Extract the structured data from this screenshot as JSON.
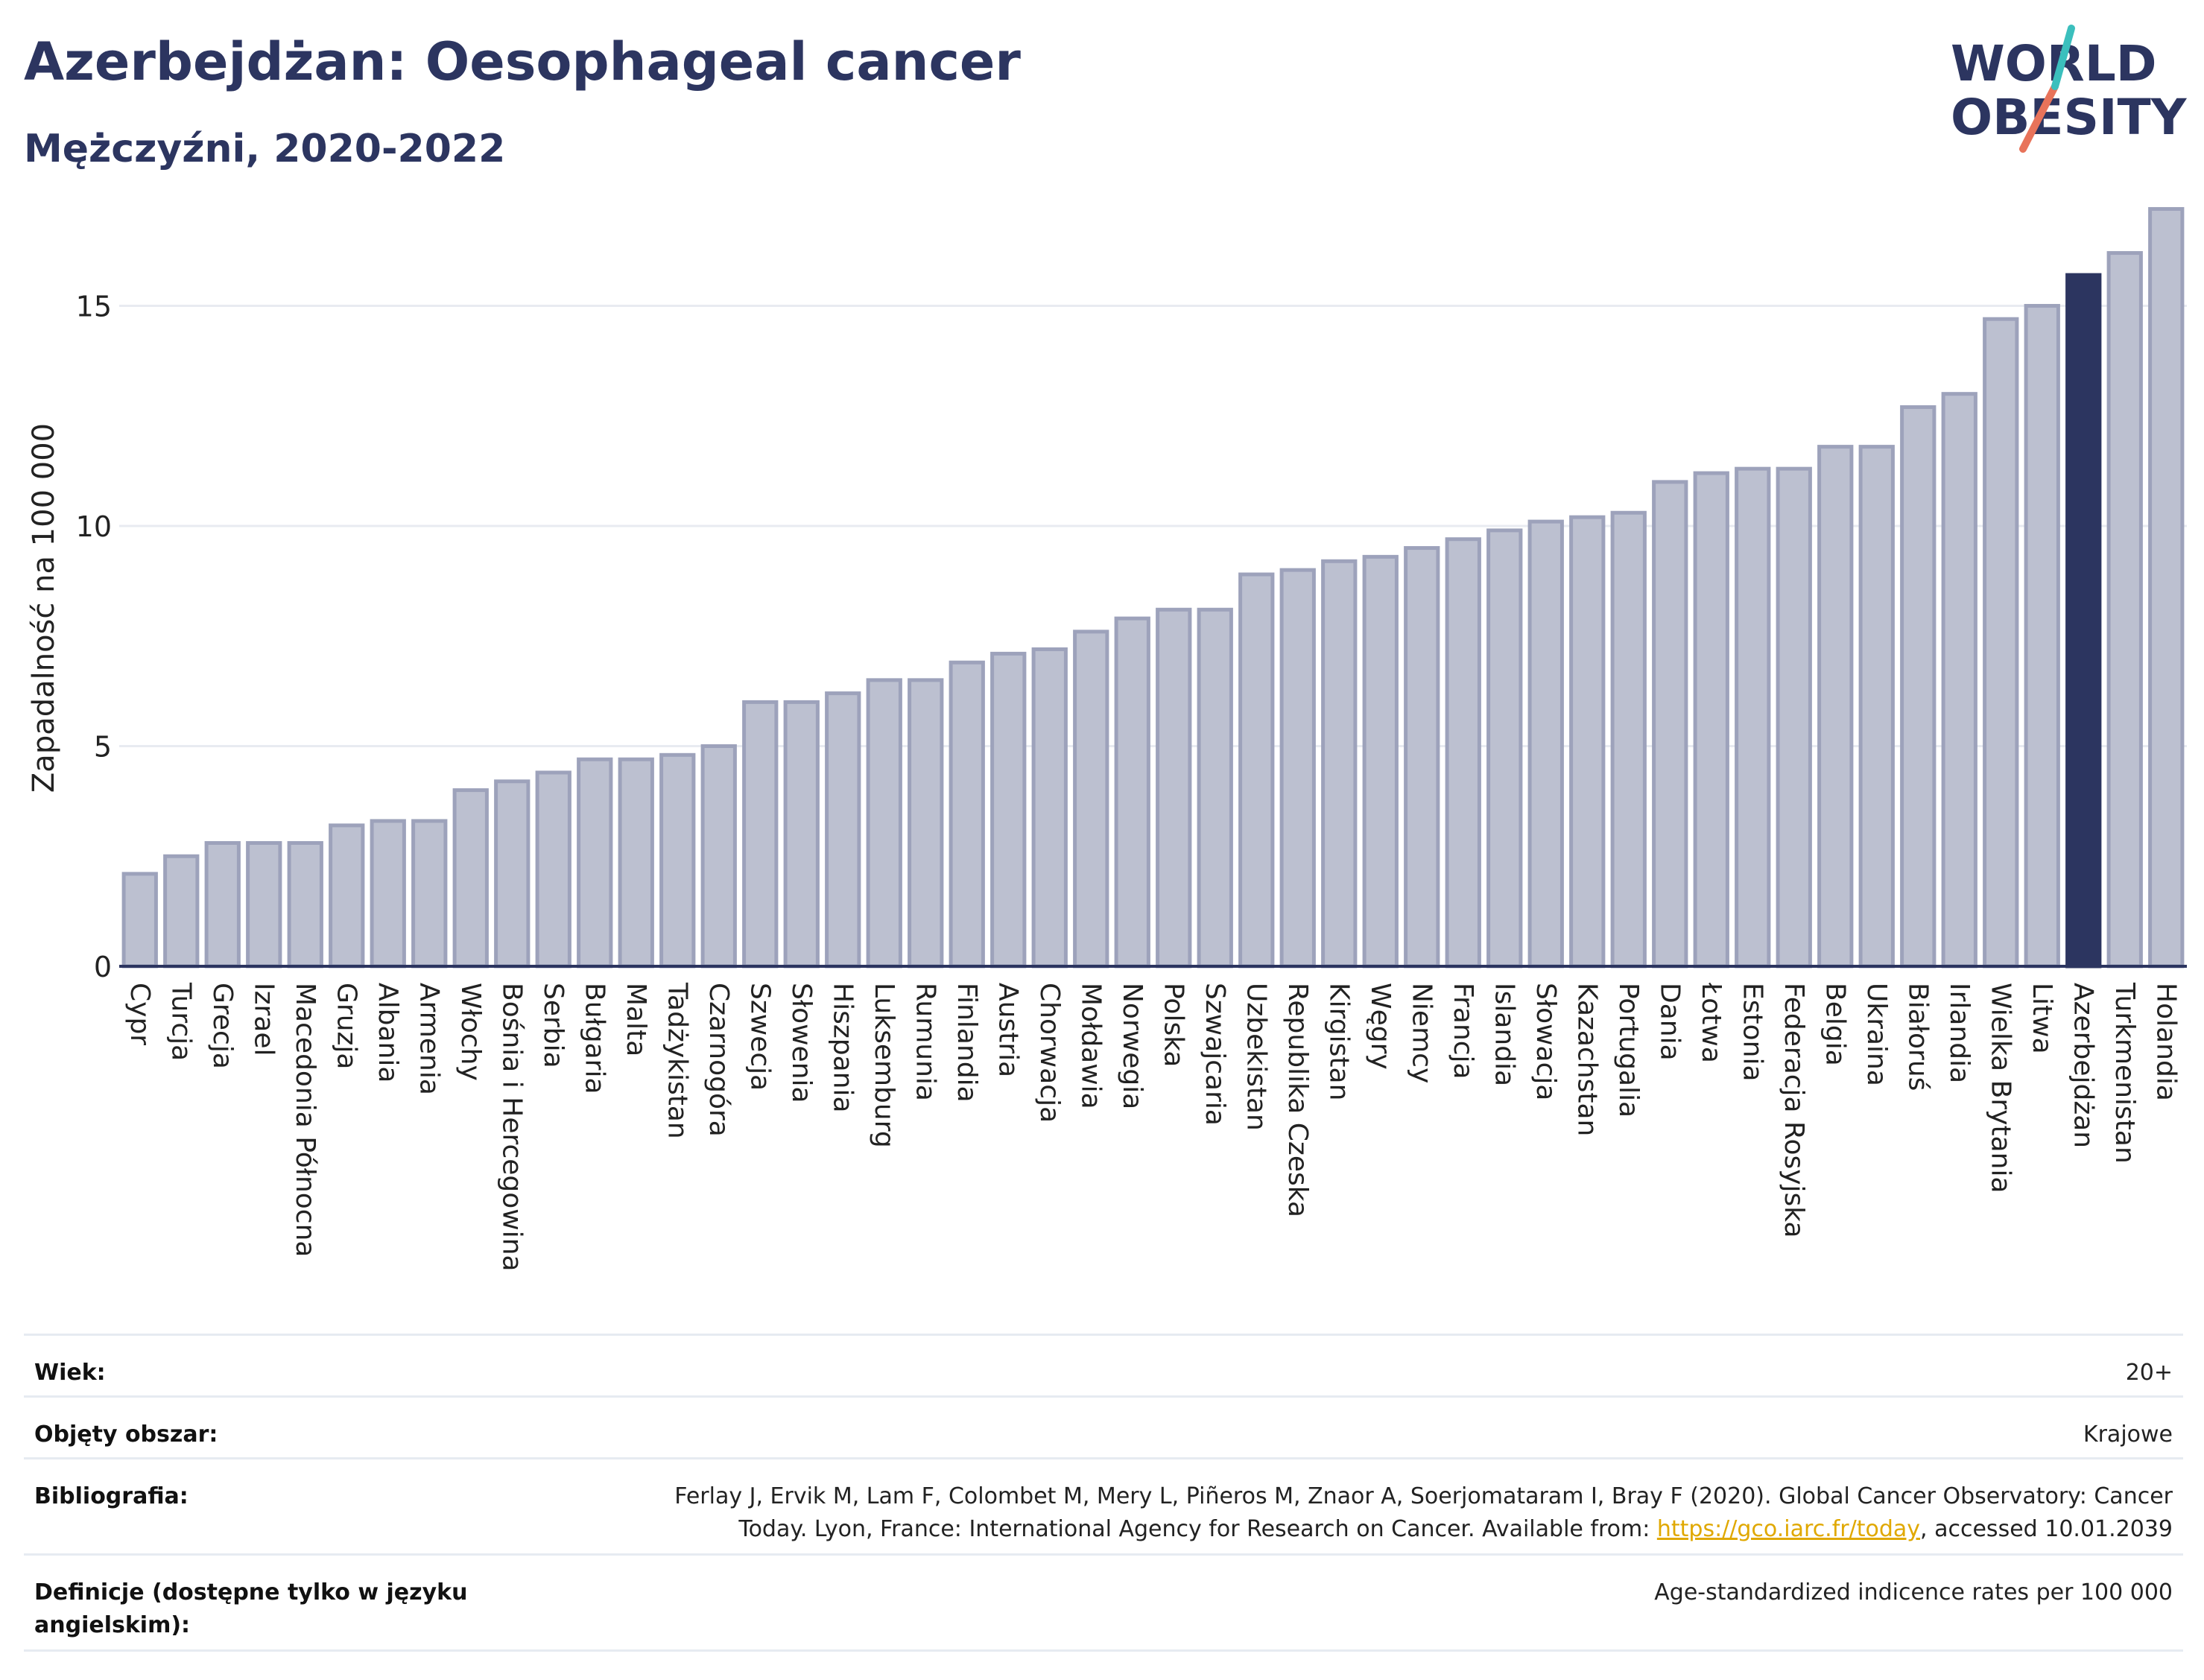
{
  "header": {
    "title": "Azerbejdżan: Oesophageal cancer",
    "subtitle": "Mężczyźni, 2020-2022"
  },
  "logo": {
    "line1": "WORLD",
    "line2": "OBESITY"
  },
  "colors": {
    "bar": "#bcc0d0",
    "bar_border": "#9da2bb",
    "highlight": "#2c3560",
    "title": "#2c3560",
    "link": "#e0a800",
    "logo_slash_teal": "#3bbfbd",
    "logo_slash_red": "#e8735a"
  },
  "chart_data": {
    "type": "bar",
    "ylabel": "Zapadalność na 100 000",
    "ylim": [
      0,
      17.8
    ],
    "yticks": [
      0,
      5,
      10,
      15
    ],
    "grid": true,
    "highlight": "Azerbejdżan",
    "categories": [
      "Cypr",
      "Turcja",
      "Grecja",
      "Izrael",
      "Macedonia Północna",
      "Gruzja",
      "Albania",
      "Armenia",
      "Włochy",
      "Bośnia i Hercegowina",
      "Serbia",
      "Bułgaria",
      "Malta",
      "Tadżykistan",
      "Czarnogóra",
      "Szwecja",
      "Słowenia",
      "Hiszpania",
      "Luksemburg",
      "Rumunia",
      "Finlandia",
      "Austria",
      "Chorwacja",
      "Mołdawia",
      "Norwegia",
      "Polska",
      "Szwajcaria",
      "Uzbekistan",
      "Republika Czeska",
      "Kirgistan",
      "Węgry",
      "Niemcy",
      "Francja",
      "Islandia",
      "Słowacja",
      "Kazachstan",
      "Portugalia",
      "Dania",
      "Łotwa",
      "Estonia",
      "Federacja Rosyjska",
      "Belgia",
      "Ukraina",
      "Białoruś",
      "Irlandia",
      "Wielka Brytania",
      "Litwa",
      "Azerbejdżan",
      "Turkmenistan",
      "Holandia"
    ],
    "values": [
      2.1,
      2.5,
      2.8,
      2.8,
      2.8,
      3.2,
      3.3,
      3.3,
      4.0,
      4.2,
      4.4,
      4.7,
      4.7,
      4.8,
      5.0,
      6.0,
      6.0,
      6.2,
      6.5,
      6.5,
      6.9,
      7.1,
      7.2,
      7.6,
      7.9,
      8.1,
      8.1,
      8.9,
      9.0,
      9.2,
      9.3,
      9.5,
      9.7,
      9.9,
      10.1,
      10.2,
      10.3,
      11.0,
      11.2,
      11.3,
      11.3,
      11.8,
      11.8,
      12.7,
      13.0,
      14.7,
      15.0,
      15.7,
      16.2,
      17.2
    ]
  },
  "info": {
    "age_label": "Wiek:",
    "age_value": "20+",
    "area_label": "Objęty obszar:",
    "area_value": "Krajowe",
    "bib_label": "Bibliografia:",
    "bib_line1": "Ferlay J, Ervik M, Lam F, Colombet M, Mery L, Piñeros M, Znaor A, Soerjomataram I, Bray F (2020). Global Cancer Observatory: Cancer",
    "bib_line2_pre": "Today. Lyon, France: International Agency for Research on Cancer. Available from: ",
    "bib_link": "https://gco.iarc.fr/today",
    "bib_line2_post": ", accessed 10.01.2039",
    "def_label": "Definicje (dostępne tylko w języku angielskim):",
    "def_value": "Age-standardized indicence rates per 100 000"
  }
}
